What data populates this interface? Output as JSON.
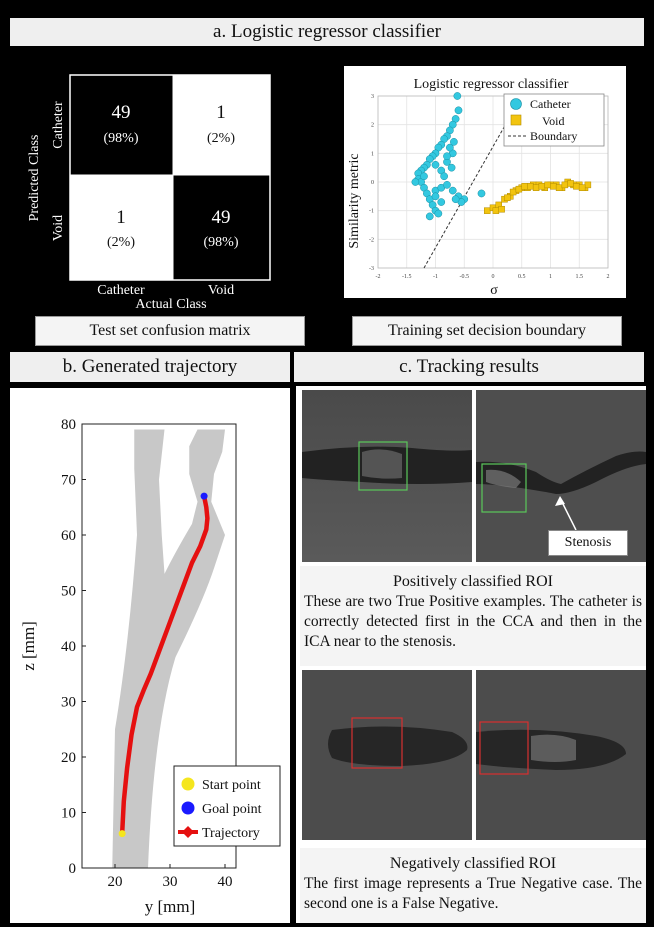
{
  "header": {
    "a_title": "a. Logistic regressor classifier",
    "b_title": "b. Generated trajectory",
    "c_title": "c. Tracking results"
  },
  "confusion": {
    "ylabel": "Predicted Class",
    "xlabel": "Actual Class",
    "row_labels": [
      "Catheter",
      "Void"
    ],
    "col_labels": [
      "Catheter",
      "Void"
    ],
    "cells": [
      {
        "count": "49",
        "pct": "(98%)"
      },
      {
        "count": "1",
        "pct": "(2%)"
      },
      {
        "count": "1",
        "pct": "(2%)"
      },
      {
        "count": "49",
        "pct": "(98%)"
      }
    ],
    "caption": "Test set confusion matrix"
  },
  "scatter_caption": "Training set decision boundary",
  "tracking": {
    "stenosis_label": "Stenosis",
    "pos_title": "Positively classified ROI",
    "pos_text": "These are two True Positive examples. The catheter is correctly detected first in the CCA and then in the ICA near to the stenosis.",
    "neg_title": "Negatively classified ROI",
    "neg_text": "The first image represents a True Negative case. The second one is a False Negative."
  },
  "chart_data": [
    {
      "type": "scatter",
      "title": "Logistic regressor classifier",
      "xlabel": "σ",
      "ylabel": "Similarity metric",
      "xlim": [
        -2,
        2
      ],
      "ylim": [
        -3,
        3
      ],
      "xticks": [
        "-2",
        "-1.5",
        "-1",
        "-0.5",
        "0",
        "0.5",
        "1",
        "1.5",
        "2"
      ],
      "yticks": [
        "3",
        "2",
        "1",
        "0",
        "-1",
        "-2",
        "-3"
      ],
      "grid": true,
      "legend": "top-right",
      "legend_entries": [
        "Catheter",
        "Void",
        "Boundary"
      ],
      "colors": {
        "Catheter": "#33c8e0",
        "Void": "#f2c40f",
        "Boundary": "#333333"
      },
      "series": [
        {
          "name": "Catheter",
          "points": [
            [
              -0.62,
              3.0
            ],
            [
              -0.6,
              2.5
            ],
            [
              -0.65,
              2.2
            ],
            [
              -0.7,
              2.0
            ],
            [
              -0.75,
              1.8
            ],
            [
              -0.8,
              1.6
            ],
            [
              -0.85,
              1.5
            ],
            [
              -0.9,
              1.3
            ],
            [
              -0.95,
              1.2
            ],
            [
              -1.0,
              1.0
            ],
            [
              -1.05,
              0.9
            ],
            [
              -1.1,
              0.8
            ],
            [
              -1.15,
              0.6
            ],
            [
              -1.2,
              0.5
            ],
            [
              -1.25,
              0.4
            ],
            [
              -1.3,
              0.3
            ],
            [
              -1.3,
              0.1
            ],
            [
              -1.25,
              0.0
            ],
            [
              -1.2,
              -0.2
            ],
            [
              -1.15,
              -0.4
            ],
            [
              -1.1,
              -0.6
            ],
            [
              -1.05,
              -0.8
            ],
            [
              -1.0,
              -1.0
            ],
            [
              -0.95,
              -1.1
            ],
            [
              -1.1,
              -1.2
            ],
            [
              -1.0,
              -0.3
            ],
            [
              -0.9,
              -0.2
            ],
            [
              -0.8,
              -0.1
            ],
            [
              -0.7,
              -0.3
            ],
            [
              -0.6,
              -0.5
            ],
            [
              -0.5,
              -0.6
            ],
            [
              -0.55,
              -0.7
            ],
            [
              -0.65,
              -0.6
            ],
            [
              -0.9,
              0.4
            ],
            [
              -0.8,
              0.7
            ],
            [
              -0.7,
              1.0
            ],
            [
              -0.75,
              1.2
            ],
            [
              -0.85,
              0.2
            ],
            [
              -1.2,
              0.2
            ],
            [
              -1.35,
              0.0
            ],
            [
              -1.0,
              -0.5
            ],
            [
              -0.9,
              -0.7
            ],
            [
              -0.8,
              0.9
            ],
            [
              -0.68,
              1.4
            ],
            [
              -0.72,
              0.5
            ],
            [
              -1.0,
              0.6
            ],
            [
              -0.2,
              -0.4
            ]
          ]
        },
        {
          "name": "Void",
          "points": [
            [
              -0.1,
              -1.0
            ],
            [
              0.0,
              -0.9
            ],
            [
              0.1,
              -0.8
            ],
            [
              0.2,
              -0.6
            ],
            [
              0.3,
              -0.5
            ],
            [
              0.4,
              -0.3
            ],
            [
              0.5,
              -0.2
            ],
            [
              0.6,
              -0.2
            ],
            [
              0.7,
              -0.1
            ],
            [
              0.8,
              -0.1
            ],
            [
              0.9,
              -0.2
            ],
            [
              1.0,
              -0.1
            ],
            [
              1.1,
              -0.1
            ],
            [
              1.2,
              -0.2
            ],
            [
              1.3,
              0.0
            ],
            [
              1.4,
              -0.1
            ],
            [
              1.5,
              -0.1
            ],
            [
              1.6,
              -0.2
            ],
            [
              1.65,
              -0.1
            ],
            [
              0.05,
              -1.0
            ],
            [
              0.15,
              -0.95
            ],
            [
              0.25,
              -0.55
            ],
            [
              0.35,
              -0.35
            ],
            [
              0.45,
              -0.25
            ],
            [
              0.55,
              -0.15
            ],
            [
              0.65,
              -0.15
            ],
            [
              0.75,
              -0.2
            ],
            [
              0.85,
              -0.15
            ],
            [
              0.95,
              -0.1
            ],
            [
              1.05,
              -0.15
            ],
            [
              1.15,
              -0.2
            ],
            [
              1.25,
              -0.1
            ],
            [
              1.35,
              -0.05
            ],
            [
              1.45,
              -0.15
            ],
            [
              1.55,
              -0.2
            ]
          ]
        },
        {
          "name": "Boundary",
          "points": [
            [
              -1.2,
              -3.0
            ],
            [
              0.5,
              3.0
            ]
          ]
        }
      ]
    },
    {
      "type": "line",
      "xlabel": "y [mm]",
      "ylabel": "z [mm]",
      "xlim": [
        14,
        42
      ],
      "ylim": [
        0,
        80
      ],
      "xticks": [
        "20",
        "30",
        "40"
      ],
      "yticks": [
        "80",
        "70",
        "60",
        "50",
        "40",
        "30",
        "20",
        "10",
        "0"
      ],
      "legend": "bottom-right",
      "legend_entries": [
        "Start point",
        "Goal point",
        "Trajectory"
      ],
      "colors": {
        "Start point": "#f5e61e",
        "Goal point": "#1a1aff",
        "Trajectory": "#e51010",
        "vessel": "#c8c8c8"
      },
      "series": [
        {
          "name": "Start point",
          "points": [
            [
              21.3,
              6.2
            ]
          ]
        },
        {
          "name": "Goal point",
          "points": [
            [
              36.2,
              67.0
            ]
          ]
        },
        {
          "name": "Trajectory",
          "points": [
            [
              21.3,
              6.2
            ],
            [
              21.6,
              12
            ],
            [
              22.2,
              18
            ],
            [
              23.0,
              24
            ],
            [
              24.0,
              29
            ],
            [
              25.2,
              32
            ],
            [
              26.5,
              35
            ],
            [
              28.0,
              39
            ],
            [
              29.5,
              43
            ],
            [
              31.0,
              47
            ],
            [
              32.5,
              51
            ],
            [
              34.0,
              55
            ],
            [
              35.5,
              58
            ],
            [
              36.6,
              61
            ],
            [
              36.8,
              63
            ],
            [
              36.6,
              65
            ],
            [
              36.2,
              67
            ]
          ]
        }
      ]
    }
  ]
}
